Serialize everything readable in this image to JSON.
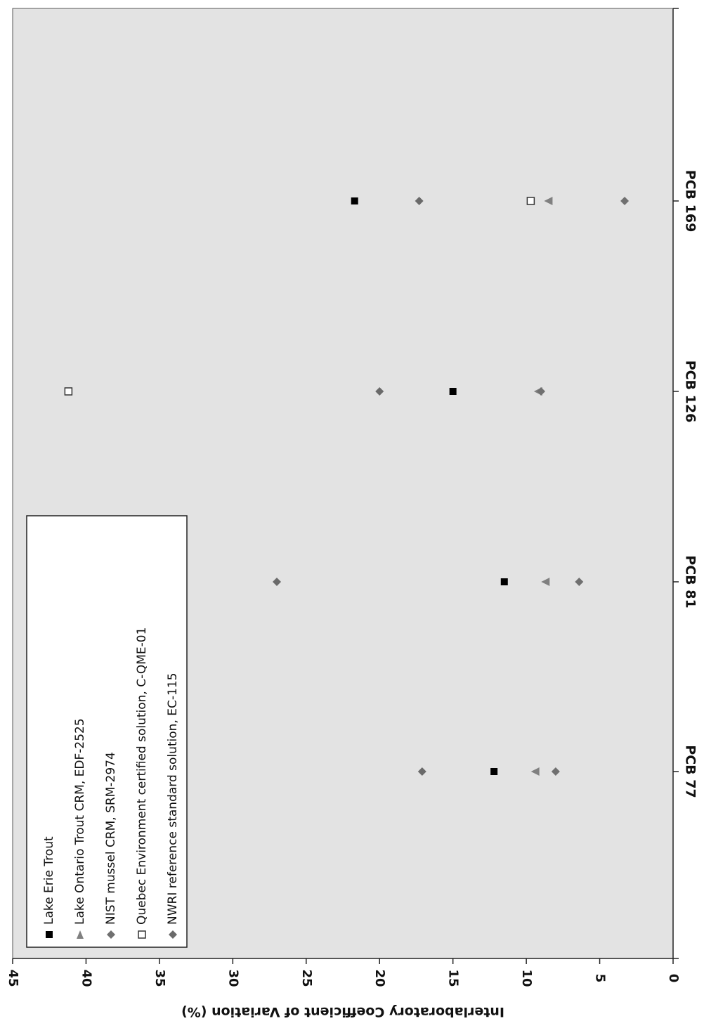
{
  "chart_data": {
    "type": "scatter",
    "orientation": "rotated-90-clockwise",
    "title": "",
    "ylabel": "Interlaboratory Coefficient of Variation (%)",
    "xlabel": "",
    "ylim": [
      0,
      45
    ],
    "yticks": [
      0,
      5,
      10,
      15,
      20,
      25,
      30,
      35,
      40,
      45
    ],
    "categories": [
      "PCB 77",
      "PCB 81",
      "PCB 126",
      "PCB 169"
    ],
    "grid": false,
    "plot_background": "#e3e3e3",
    "legend_position": "top-left",
    "series": [
      {
        "name": "Lake Erie Trout",
        "marker": "square",
        "color": "#000000",
        "values": [
          12.2,
          11.5,
          15.0,
          21.7
        ]
      },
      {
        "name": "Lake Ontario Trout CRM, EDF-2525",
        "marker": "triangle",
        "color": "#808080",
        "values": [
          9.4,
          8.7,
          9.2,
          8.5
        ]
      },
      {
        "name": "NIST mussel CRM, SRM-2974",
        "marker": "diamond",
        "color": "#707070",
        "values": [
          8.0,
          6.4,
          9.0,
          3.3
        ]
      },
      {
        "name": "Quebec Environment certified solution, C-QME-01",
        "marker": "open-square",
        "color": "#333333",
        "values": [
          null,
          null,
          41.2,
          9.7
        ]
      },
      {
        "name": "NWRI reference standard solution, EC-115",
        "marker": "diamond",
        "color": "#6a6a6a",
        "values": [
          17.1,
          27.0,
          20.0,
          17.3
        ]
      }
    ]
  }
}
